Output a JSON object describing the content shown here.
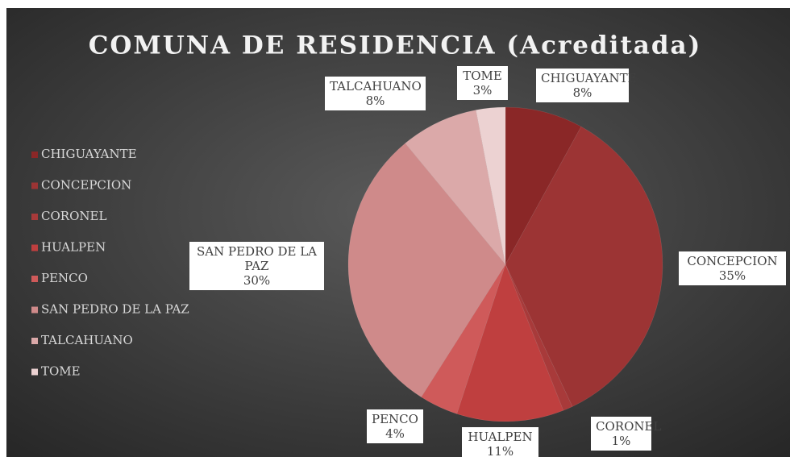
{
  "chart_data": {
    "type": "pie",
    "title": "COMUNA DE RESIDENCIA (Acreditada)",
    "categories": [
      "CHIGUAYANTE",
      "CONCEPCION",
      "CORONEL",
      "HUALPEN",
      "PENCO",
      "SAN PEDRO DE LA PAZ",
      "TALCAHUANO",
      "TOME"
    ],
    "values": [
      8,
      35,
      1,
      11,
      4,
      30,
      8,
      3
    ],
    "value_labels": [
      "8%",
      "35%",
      "1%",
      "11%",
      "4%",
      "30%",
      "8%",
      "3%"
    ],
    "colors": [
      "#8a2727",
      "#9c3434",
      "#a83a3a",
      "#bf3f3f",
      "#cf5a5a",
      "#cf8a8a",
      "#dba9a9",
      "#ecd2d2"
    ],
    "legend": "left"
  }
}
